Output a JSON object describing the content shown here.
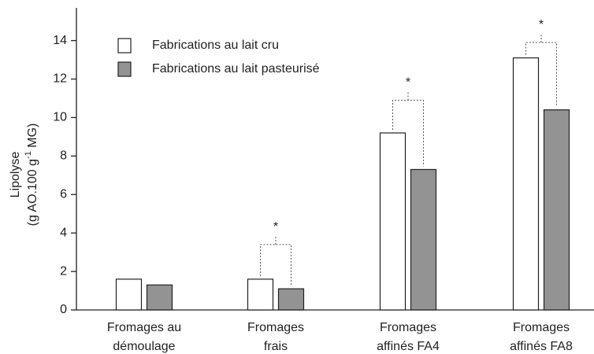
{
  "chart_data": {
    "type": "bar",
    "y_label": {
      "line1": "Lipolyse",
      "line2": [
        "(g AO.100 g",
        "-1",
        " MG)"
      ]
    },
    "categories": [
      [
        "Fromages au",
        "démoulage"
      ],
      [
        "Fromages",
        "frais"
      ],
      [
        "Fromages",
        "affinés FA4"
      ],
      [
        "Fromages",
        "affinés FA8"
      ]
    ],
    "series": [
      {
        "name": "Fabrications au lait cru",
        "color": "#ffffff",
        "values": [
          1.6,
          1.6,
          9.2,
          13.1
        ]
      },
      {
        "name": "Fabrications au lait pasteurisé",
        "color": "#939393",
        "values": [
          1.3,
          1.1,
          7.3,
          10.4
        ]
      }
    ],
    "significance": [
      null,
      "*",
      "*",
      "*"
    ],
    "significance_level": [
      null,
      3.4,
      10.9,
      13.9
    ],
    "ylim": [
      0,
      15.7
    ],
    "yticks": [
      0,
      2,
      4,
      6,
      8,
      10,
      12,
      14
    ],
    "legend": "upper-left"
  }
}
